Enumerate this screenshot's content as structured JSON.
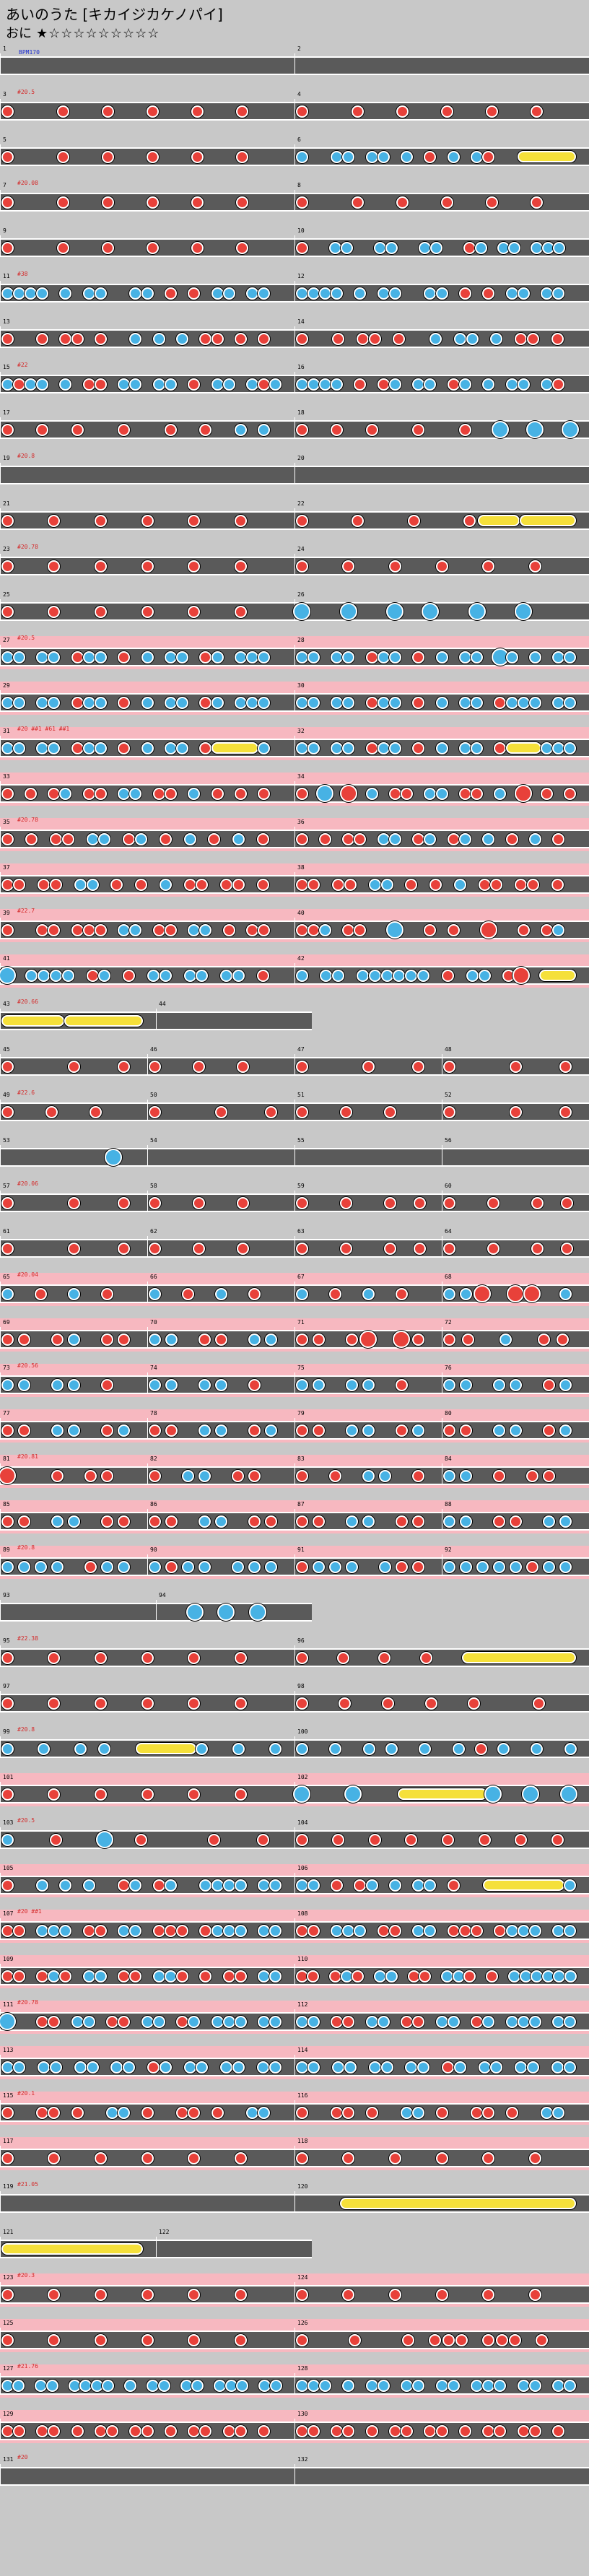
{
  "song": {
    "title": "あいのうた [キカイジカケノパイ]",
    "difficulty_label": "おに",
    "stars": "★☆☆☆☆☆☆☆☆☆"
  },
  "colors": {
    "don": "#e8413a",
    "ka": "#47b2e4",
    "roll": "#f5e03a",
    "lane": "#5a5a5a",
    "gogo_band": "#f7b8c0",
    "page_bg": "#c8c8c8",
    "label_text": "#d42a2a",
    "start_text": "#1f2fd0"
  },
  "chart": {
    "start_label": "BPM170",
    "bpm_labels": [
      "#20.5",
      "#20.08",
      "#38",
      "#22",
      "#20.8",
      "#20.78",
      "#20.5",
      "#20 ##1 #61 ##1",
      "#20.78",
      "#22.7",
      "#20.66",
      "#22.6",
      "#20.06",
      "#20.04",
      "#20.56",
      "#20.81",
      "#20.8",
      "#22.38",
      "#20.8",
      "#20.5",
      "#20 ##1",
      "#20.78",
      "#20.1",
      "#21.05",
      "#20.3",
      "#21.76",
      "#20",
      "#20.8",
      "#20",
      "#20.5",
      "#20",
      "#20.5",
      "#20",
      "#20.5",
      "#20",
      "#20",
      "#20.5",
      "#20",
      "#20",
      "#20",
      "#20",
      "#20"
    ],
    "rows": [
      {
        "half": "full",
        "bars": [
          "1",
          "2"
        ],
        "notes": "",
        "gogo": false
      },
      {
        "half": "full",
        "bars": [
          "3",
          "4"
        ],
        "notes": "d....d...d...d...d...d...|d....d...d...d...d...d...",
        "gogo": false
      },
      {
        "half": "full",
        "bars": [
          "5",
          "6"
        ],
        "notes": "d....d...d...d...d...d...|k..kk.kk.k.d.k.kd..R....",
        "gogo": false
      },
      {
        "half": "full",
        "bars": [
          "7",
          "8"
        ],
        "notes": "d....d...d...d...d...d...|d....d...d...d...d...d...",
        "gogo": false
      },
      {
        "half": "full",
        "bars": [
          "9",
          "10"
        ],
        "notes": "d....d...d...d...d...d...|d..kk..kk..kk..dk.kk.kkk.",
        "gogo": false
      },
      {
        "half": "full",
        "bars": [
          "11",
          "12"
        ],
        "notes": "kkkk.k.kk..kk.d.d.kk.kk.|kkkk.k.kk..kk.d.d.kk.kk.",
        "gogo": false
      },
      {
        "half": "full",
        "bars": [
          "13",
          "14"
        ],
        "notes": "d..d.dd.d..k.k.k.dd.d.d.|d..d.dd.d..k.kk.k.dd.d.",
        "gogo": false
      },
      {
        "half": "full",
        "bars": [
          "15",
          "16"
        ],
        "notes": "kdkk.k.dd.kk.kk.d.kk.kdk|kkkk.d.dk.kk.dk.k.kk.kd.",
        "gogo": false
      },
      {
        "half": "full",
        "bars": [
          "17",
          "18"
        ],
        "notes": "d..d..d...d...d..d..k.k.|d..d..d...d...d..K..K..K",
        "gogo": false
      },
      {
        "half": "full",
        "bars": [
          "19",
          "20"
        ],
        "notes": "................................|",
        "gogo": false
      },
      {
        "half": "full",
        "bars": [
          "21",
          "22"
        ],
        "notes": "d...d...d...d...d...d...|d...d...d...dR..R...",
        "gogo": false
      },
      {
        "half": "full",
        "bars": [
          "23",
          "24"
        ],
        "notes": "d...d...d...d...d...d...|d...d...d...d...d...d...",
        "gogo": false
      },
      {
        "half": "full",
        "bars": [
          "25",
          "26"
        ],
        "notes": "d...d...d...d...d...d...|K...K...K..K...K...K....",
        "gogo": false
      },
      {
        "half": "full",
        "bars": [
          "27",
          "28"
        ],
        "notes": "kk.kk.dkk.d.k.kk.dk.kkk.|kk.kk.dkk.d.k.kk.Kk.k.kk",
        "gogo": true
      },
      {
        "half": "full",
        "bars": [
          "29",
          "30"
        ],
        "notes": "kk.kk.dkk.d.k.kk.dk.kkk.|kk.kk.dkk.d.k.kk.dkkk.kk",
        "gogo": true
      },
      {
        "half": "full",
        "bars": [
          "31",
          "32"
        ],
        "notes": "kk.kk.dkk.d.k.kk.dR...k.|kk.kk.dkk.d.k.kk.dR..kkk",
        "gogo": true
      },
      {
        "half": "full",
        "bars": [
          "33",
          "34"
        ],
        "notes": "d.d.dk.dd.kk.dd.k.d.d.d.|d.K.D.k.dd.kk.dd.k.D.d.d",
        "gogo": true
      },
      {
        "half": "full",
        "bars": [
          "35",
          "36"
        ],
        "notes": "d.d.dd.kk.dk.d.k.d.k.d.|d.d.dd.kk.dk.dk.k.d.k.d.",
        "gogo": true
      },
      {
        "half": "full",
        "bars": [
          "37",
          "38"
        ],
        "notes": "dd.dd.kk.d.d.k.dd.dd.d.|dd.dd.kk.d.d.k.dd.dd.d.",
        "gogo": true
      },
      {
        "half": "full",
        "bars": [
          "39",
          "40"
        ],
        "notes": "d..dd.ddd.kk.dd.kk.d.dd.|ddk.dd..K..d.d..D..d.dk.",
        "gogo": true
      },
      {
        "half": "full",
        "bars": [
          "41",
          "42"
        ],
        "notes": "K.kkkk.dk.d.kk.kk.kk.d.|k.kk.kkkkkk.d.kk.dD.R..",
        "gogo": true
      },
      {
        "half": "left",
        "bars": [
          "43",
          "44"
        ],
        "notes": "R...R....|",
        "gogo": false
      },
      {
        "half": "quad",
        "bars": [
          "45",
          "46",
          "47",
          "48"
        ],
        "notes": "d...d..d|d..d..d..|d...d..d|d...d..d",
        "gogo": false
      },
      {
        "half": "quad",
        "bars": [
          "49",
          "50",
          "51",
          "52"
        ],
        "notes": "d..d..d..|d...d..d|d..d..d..|d...d..d",
        "gogo": false
      },
      {
        "half": "quad",
        "bars": [
          "53",
          "54",
          "55",
          "56"
        ],
        "notes": "....K|....|....|....",
        "gogo": false
      },
      {
        "half": "quad",
        "bars": [
          "57",
          "58",
          "59",
          "60"
        ],
        "notes": "d...d..d|d..d..d..|d..d..d.d|d..d..d.d",
        "gogo": false
      },
      {
        "half": "quad",
        "bars": [
          "61",
          "62",
          "63",
          "64"
        ],
        "notes": "d...d..d|d..d..d..|d..d..d.d|d..d..d.d",
        "gogo": false
      },
      {
        "half": "quad",
        "bars": [
          "65",
          "66",
          "67",
          "68"
        ],
        "notes": "k.d.k.d.|k.d.k.d.|k.d.k.d.|kkD.DD.k",
        "gogo": true
      },
      {
        "half": "quad",
        "bars": [
          "69",
          "70",
          "71",
          "72"
        ],
        "notes": "dd.dk.dd|kk.dd.kk|dd.dD.Dd|dd.k.dd",
        "gogo": true
      },
      {
        "half": "quad",
        "bars": [
          "73",
          "74",
          "75",
          "76"
        ],
        "notes": "kk.kk.d.|kk.kk.d.|kk.kk.d.|kk.kk.dk",
        "gogo": true
      },
      {
        "half": "quad",
        "bars": [
          "77",
          "78",
          "79",
          "80"
        ],
        "notes": "dd.kk.dk|dd.kk.dk|dd.kk.dk|dd.kk.dk",
        "gogo": true
      },
      {
        "half": "quad",
        "bars": [
          "81",
          "82",
          "83",
          "84"
        ],
        "notes": "D..d.dd.|d.kk.dd.|d.d.kk.d|kk.d.dd.",
        "gogo": true
      },
      {
        "half": "quad",
        "bars": [
          "85",
          "86",
          "87",
          "88"
        ],
        "notes": "dd.kk.dd|dd.kk.dd|dd.kk.dd|kk.dd.kk",
        "gogo": true
      },
      {
        "half": "quad",
        "bars": [
          "89",
          "90",
          "91",
          "92"
        ],
        "notes": "kkkk.dkk|kdkk.kkk|dkkk.kdd|kkkkkdkk",
        "gogo": true
      },
      {
        "half": "left",
        "bars": [
          "93",
          "94"
        ],
        "notes": "........|..K.K.K..",
        "gogo": false
      },
      {
        "half": "full",
        "bars": [
          "95",
          "96"
        ],
        "notes": "d...d...d...d...d...d...|d...d...d...d...R..........",
        "gogo": false
      },
      {
        "half": "full",
        "bars": [
          "97",
          "98"
        ],
        "notes": "d...d...d...d...d...d...|d...d...d...d...d.....d...",
        "gogo": false
      },
      {
        "half": "full",
        "bars": [
          "99",
          "100"
        ],
        "notes": "k..k..k.k..R....k..k..k|k..k..k.k..k..k.d.k..k..k",
        "gogo": false
      },
      {
        "half": "full",
        "bars": [
          "101",
          "102"
        ],
        "notes": "d...d...d...d...d...d...|K...K...R......K..K..K",
        "gogo": true
      },
      {
        "half": "full",
        "bars": [
          "103",
          "104"
        ],
        "notes": "k...d...K..d.....d...d.|d..d..d..d..d..d..d..d.",
        "gogo": false
      },
      {
        "half": "full",
        "bars": [
          "105",
          "106"
        ],
        "notes": "d..k.k.k..dk.dk..kkkk.kk|kk.d.dk.k.kk.d..R......k",
        "gogo": true
      },
      {
        "half": "full",
        "bars": [
          "107",
          "108"
        ],
        "notes": "dd.kkk.dd.kk.ddd.dkkk.kk|dd.kkk.dd.kk.ddd.dkkk.kk",
        "gogo": true
      },
      {
        "half": "full",
        "bars": [
          "109",
          "110"
        ],
        "notes": "dd.dkd.kk.dd.kkd.d.dd.kk|dd.dkd.kk.dd.kkd.d.kkkkkk",
        "gogo": true
      },
      {
        "half": "full",
        "bars": [
          "111",
          "112"
        ],
        "notes": "K..dd.kk.dd.kk.dk.kkk.kk|kk.dd.kk.dd.kk.dk.kkk.kk",
        "gogo": true
      },
      {
        "half": "full",
        "bars": [
          "113",
          "114"
        ],
        "notes": "kk.kk.kk.kk.dk.kk.kk.kk|kk.kk.kk.kk.dk.kk.kk.kk",
        "gogo": true
      },
      {
        "half": "full",
        "bars": [
          "115",
          "116"
        ],
        "notes": "d..dd.d..kk.d..dd.d..kk.|d..dd.d..kk.d..dd.d..kk.",
        "gogo": true
      },
      {
        "half": "full",
        "bars": [
          "117",
          "118"
        ],
        "notes": "d...d...d...d...d...d...|d...d...d...d...d...d...",
        "gogo": true
      },
      {
        "half": "full",
        "bars": [
          "119",
          "120"
        ],
        "notes": "|.....R..........................",
        "gogo": false
      },
      {
        "half": "left",
        "bars": [
          "121",
          "122"
        ],
        "notes": "R.......................",
        "gogo": false
      },
      {
        "half": "full",
        "bars": [
          "123",
          "124"
        ],
        "notes": "d...d...d...d...d...d...|d...d...d...d...d...d...",
        "gogo": true
      },
      {
        "half": "full",
        "bars": [
          "125",
          "126"
        ],
        "notes": "d...d...d...d...d...d...|d...d...d.ddd.ddd.d..",
        "gogo": true
      },
      {
        "half": "full",
        "bars": [
          "127",
          "128"
        ],
        "notes": "kk.kk.kkkk.k.kk.kk.kkk.kk|kkk.k.kk.kk.kk.kkk.kk.kk",
        "gogo": true
      },
      {
        "half": "full",
        "bars": [
          "129",
          "130"
        ],
        "notes": "dd.dd.d.dd.dd.d.dd.dd.d.|dd.dd.d.dd.dd.d.dd.dd.d.",
        "gogo": true
      },
      {
        "half": "full",
        "bars": [
          "131",
          "132"
        ],
        "notes": "",
        "gogo": false
      }
    ]
  }
}
